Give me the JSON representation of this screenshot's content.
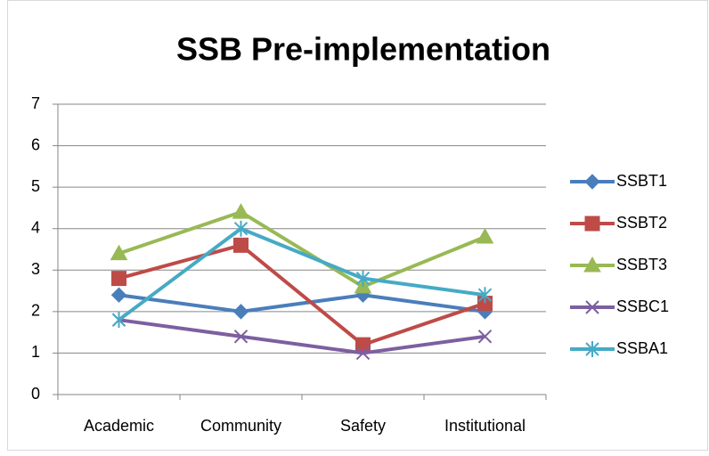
{
  "chart_data": {
    "type": "line",
    "title": "SSB Pre-implementation",
    "categories": [
      "Academic",
      "Community",
      "Safety",
      "Institutional"
    ],
    "series": [
      {
        "name": "SSBT1",
        "color": "#4a7ebb",
        "marker": "diamond",
        "values": [
          2.4,
          2.0,
          2.4,
          2.0
        ]
      },
      {
        "name": "SSBT2",
        "color": "#be4b48",
        "marker": "square",
        "values": [
          2.8,
          3.6,
          1.2,
          2.2
        ]
      },
      {
        "name": "SSBT3",
        "color": "#98b954",
        "marker": "triangle",
        "values": [
          3.4,
          4.4,
          2.6,
          3.8
        ]
      },
      {
        "name": "SSBC1",
        "color": "#7d5fa0",
        "marker": "x",
        "values": [
          1.8,
          1.4,
          1.0,
          1.4
        ]
      },
      {
        "name": "SSBA1",
        "color": "#46aac5",
        "marker": "star",
        "values": [
          1.8,
          4.0,
          2.8,
          2.4
        ]
      }
    ],
    "ylim": [
      0,
      7
    ],
    "yticks": [
      0,
      1,
      2,
      3,
      4,
      5,
      6,
      7
    ],
    "grid": true,
    "legend": "right"
  }
}
